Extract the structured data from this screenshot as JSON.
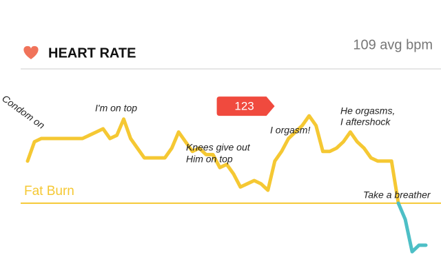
{
  "chart_data": {
    "type": "line",
    "title": "HEART RATE",
    "subtitle": "109 avg bpm",
    "ylim": [
      80,
      126
    ],
    "series": [
      {
        "color": "#f5c833",
        "values": [
          109,
          115,
          116,
          116,
          116,
          116,
          116,
          116,
          116,
          117,
          118,
          119,
          116,
          117,
          122,
          116,
          113,
          110,
          110,
          110,
          110,
          113,
          118,
          115,
          112,
          113,
          111,
          111,
          107,
          108,
          105,
          101,
          102,
          103,
          102,
          100,
          109,
          112,
          116,
          118,
          120,
          123,
          120,
          112,
          112,
          113,
          115,
          118,
          115,
          113,
          110,
          109,
          109,
          109,
          96,
          null,
          null,
          null,
          null
        ]
      },
      {
        "color": "#4dbfc6",
        "values": [
          null,
          null,
          null,
          null,
          null,
          null,
          null,
          null,
          null,
          null,
          null,
          null,
          null,
          null,
          null,
          null,
          null,
          null,
          null,
          null,
          null,
          null,
          null,
          null,
          null,
          null,
          null,
          null,
          null,
          null,
          null,
          null,
          null,
          null,
          null,
          null,
          null,
          null,
          null,
          null,
          null,
          null,
          null,
          null,
          null,
          null,
          null,
          null,
          null,
          null,
          null,
          null,
          null,
          null,
          96,
          91,
          81,
          83,
          83
        ]
      }
    ],
    "highlight_index": 41,
    "highlight_color": "#f04a3e",
    "reference_line": {
      "label": "Fat Burn",
      "value": 96,
      "color": "#f5c833"
    },
    "annotations": [
      "Condom on",
      "I'm on top",
      "Knees give out",
      "Him on top",
      "I orgasm!",
      "He orgasms,",
      "I aftershock",
      "Take a breather"
    ]
  }
}
